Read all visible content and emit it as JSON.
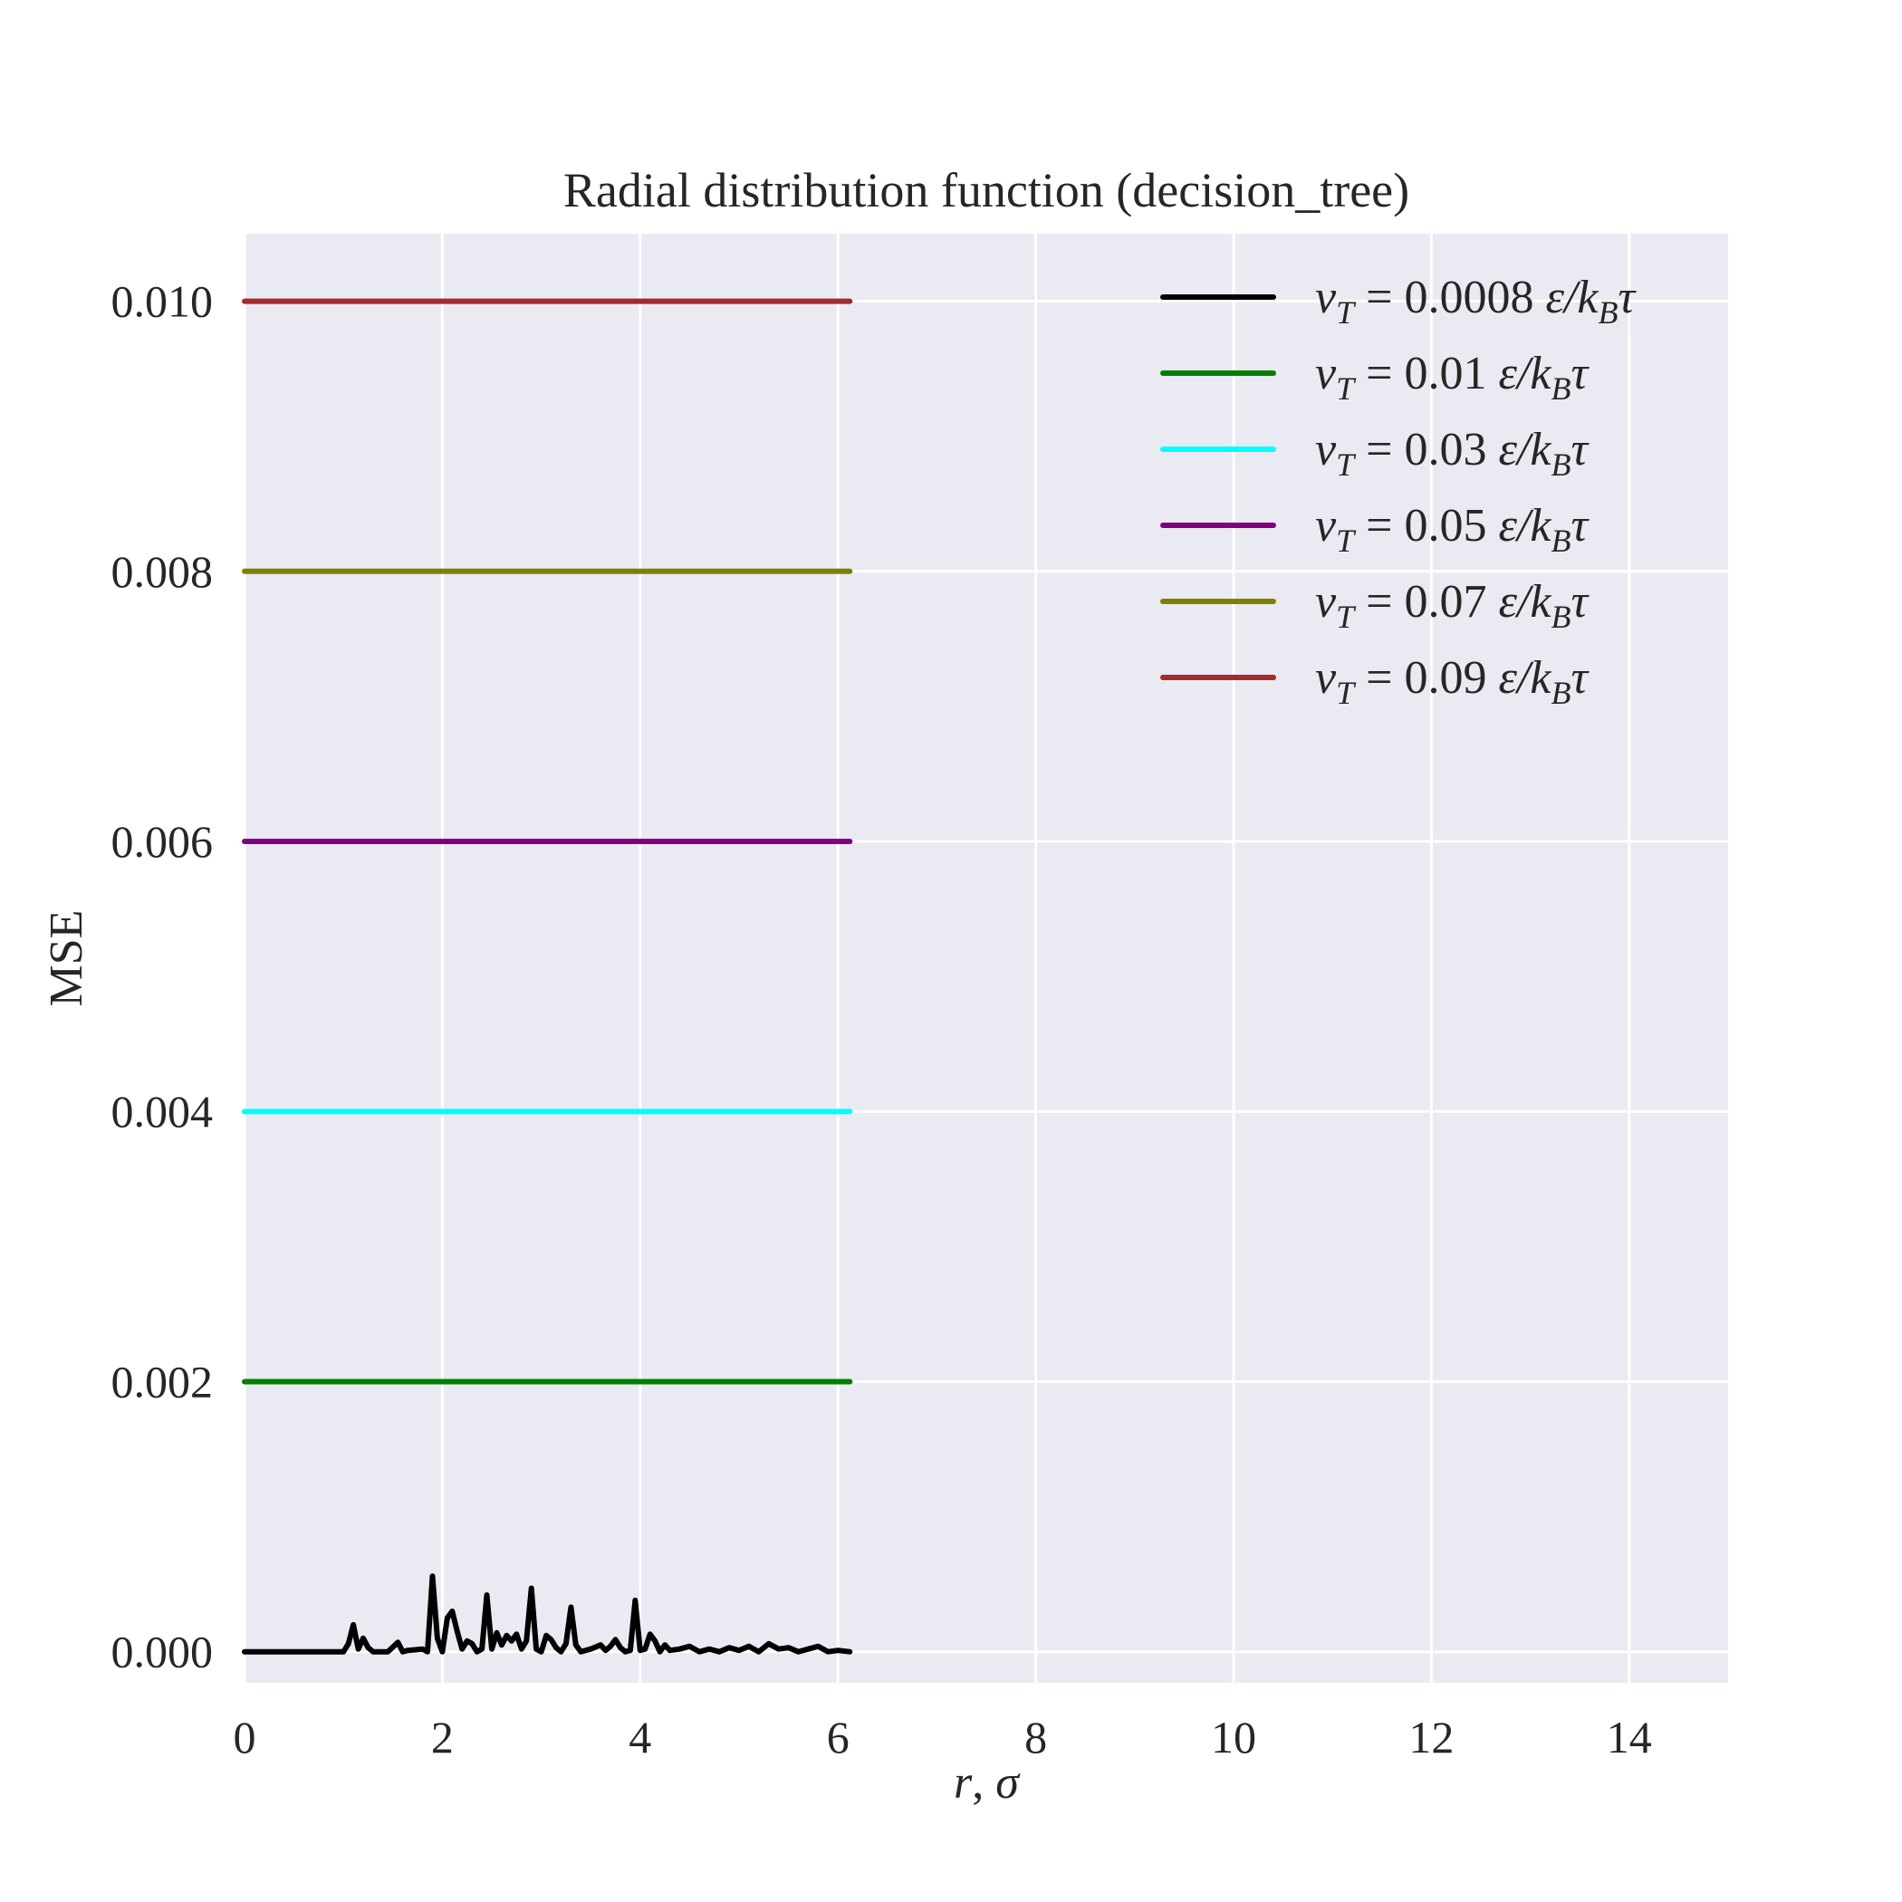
{
  "chart_data": {
    "type": "line",
    "title": "Radial distribution function (decision_tree)",
    "xlabel": "r, σ",
    "ylabel": "MSE",
    "xlim": [
      0,
      15
    ],
    "ylim": [
      -0.00023,
      0.0105
    ],
    "xticks": [
      0,
      2,
      4,
      6,
      8,
      10,
      12,
      14
    ],
    "yticks": [
      0.0,
      0.002,
      0.004,
      0.006,
      0.008,
      0.01
    ],
    "ytick_labels": [
      "0.000",
      "0.002",
      "0.004",
      "0.006",
      "0.008",
      "0.010"
    ],
    "grid": true,
    "legend_position": "top-right",
    "series": [
      {
        "name": "v_T = 0.0008 ε/k_Bτ",
        "value": "0.0008",
        "color": "#000000",
        "x": [
          0,
          1.0,
          1.05,
          1.1,
          1.15,
          1.2,
          1.25,
          1.3,
          1.45,
          1.55,
          1.6,
          1.65,
          1.8,
          1.85,
          1.9,
          1.95,
          2.0,
          2.05,
          2.1,
          2.15,
          2.2,
          2.25,
          2.3,
          2.35,
          2.4,
          2.45,
          2.5,
          2.55,
          2.6,
          2.65,
          2.7,
          2.75,
          2.8,
          2.85,
          2.9,
          2.95,
          3.0,
          3.05,
          3.1,
          3.15,
          3.2,
          3.25,
          3.3,
          3.35,
          3.4,
          3.5,
          3.6,
          3.65,
          3.7,
          3.75,
          3.8,
          3.85,
          3.9,
          3.95,
          4.0,
          4.05,
          4.1,
          4.15,
          4.2,
          4.25,
          4.3,
          4.4,
          4.5,
          4.6,
          4.7,
          4.8,
          4.9,
          5.0,
          5.1,
          5.2,
          5.3,
          5.4,
          5.5,
          5.6,
          5.7,
          5.8,
          5.9,
          6.0,
          6.12
        ],
        "y": [
          0,
          0,
          6e-05,
          0.0002,
          2e-05,
          0.0001,
          3e-05,
          0,
          0,
          7e-05,
          0,
          1e-05,
          2e-05,
          0,
          0.00056,
          0.0001,
          0,
          0.00025,
          0.0003,
          0.00015,
          2e-05,
          8e-05,
          6e-05,
          0,
          2e-05,
          0.00042,
          2e-05,
          0.00014,
          5e-05,
          0.00012,
          8e-05,
          0.00013,
          2e-05,
          8e-05,
          0.00047,
          2e-05,
          0,
          0.00012,
          9e-05,
          3e-05,
          0,
          6e-05,
          0.00033,
          5e-05,
          0,
          2e-05,
          5e-05,
          1e-05,
          4e-05,
          9e-05,
          3e-05,
          0,
          1e-05,
          0.00038,
          1e-05,
          2e-05,
          0.00013,
          8e-05,
          0,
          5e-05,
          1e-05,
          2e-05,
          4e-05,
          0,
          2e-05,
          0,
          3e-05,
          1e-05,
          4e-05,
          0,
          6e-05,
          2e-05,
          3e-05,
          0,
          2e-05,
          4e-05,
          0,
          1e-05,
          0
        ]
      },
      {
        "name": "v_T = 0.01 ε/k_Bτ",
        "value": "0.01",
        "color": "#008000",
        "x": [
          0,
          6.12
        ],
        "y": [
          0.002,
          0.002
        ]
      },
      {
        "name": "v_T = 0.03 ε/k_Bτ",
        "value": "0.03",
        "color": "#00ffff",
        "x": [
          0,
          6.12
        ],
        "y": [
          0.004,
          0.004
        ]
      },
      {
        "name": "v_T = 0.05 ε/k_Bτ",
        "value": "0.05",
        "color": "#800080",
        "x": [
          0,
          6.12
        ],
        "y": [
          0.006,
          0.006
        ]
      },
      {
        "name": "v_T = 0.07 ε/k_Bτ",
        "value": "0.07",
        "color": "#808000",
        "x": [
          0,
          6.12
        ],
        "y": [
          0.008,
          0.008
        ]
      },
      {
        "name": "v_T = 0.09 ε/k_Bτ",
        "value": "0.09",
        "color": "#a52a2a",
        "x": [
          0,
          6.12
        ],
        "y": [
          0.01,
          0.01
        ]
      }
    ]
  },
  "legend": {
    "prefix_var": "v",
    "prefix_sub": "T",
    "equals": " = ",
    "unit_eps": " ε/k",
    "unit_sub": "B",
    "unit_tau": "τ"
  },
  "axis_label_parts": {
    "x_var": "r",
    "x_sep": ", ",
    "x_unit": "σ"
  }
}
